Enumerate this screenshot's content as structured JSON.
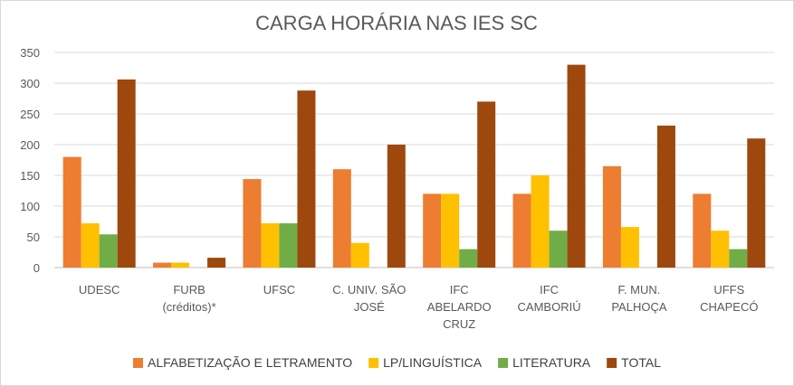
{
  "chart_data": {
    "type": "bar",
    "title": "CARGA HORÁRIA NAS IES SC",
    "xlabel": "",
    "ylabel": "",
    "ylim": [
      0,
      350
    ],
    "yticks": [
      0,
      50,
      100,
      150,
      200,
      250,
      300,
      350
    ],
    "grid": true,
    "legend_position": "bottom",
    "categories": [
      [
        "UDESC"
      ],
      [
        "FURB",
        "(créditos)*"
      ],
      [
        "UFSC"
      ],
      [
        "C. UNIV. SÃO",
        "JOSÉ"
      ],
      [
        "IFC",
        "ABELARDO",
        "CRUZ"
      ],
      [
        "IFC",
        "CAMBORIÚ"
      ],
      [
        "F. MUN.",
        "PALHOÇA"
      ],
      [
        "UFFS",
        "CHAPECÓ"
      ]
    ],
    "series": [
      {
        "name": "ALFABETIZAÇÃO E LETRAMENTO",
        "color": "#ED7D31",
        "values": [
          180,
          8,
          144,
          160,
          120,
          120,
          165,
          120
        ]
      },
      {
        "name": "LP/LINGUÍSTICA",
        "color": "#FFC000",
        "values": [
          72,
          8,
          72,
          40,
          120,
          150,
          66,
          60
        ]
      },
      {
        "name": "LITERATURA",
        "color": "#70AD47",
        "values": [
          54,
          0,
          72,
          0,
          30,
          60,
          0,
          30
        ]
      },
      {
        "name": "TOTAL",
        "color": "#9E480E",
        "values": [
          306,
          16,
          288,
          200,
          270,
          330,
          231,
          210
        ]
      }
    ]
  }
}
